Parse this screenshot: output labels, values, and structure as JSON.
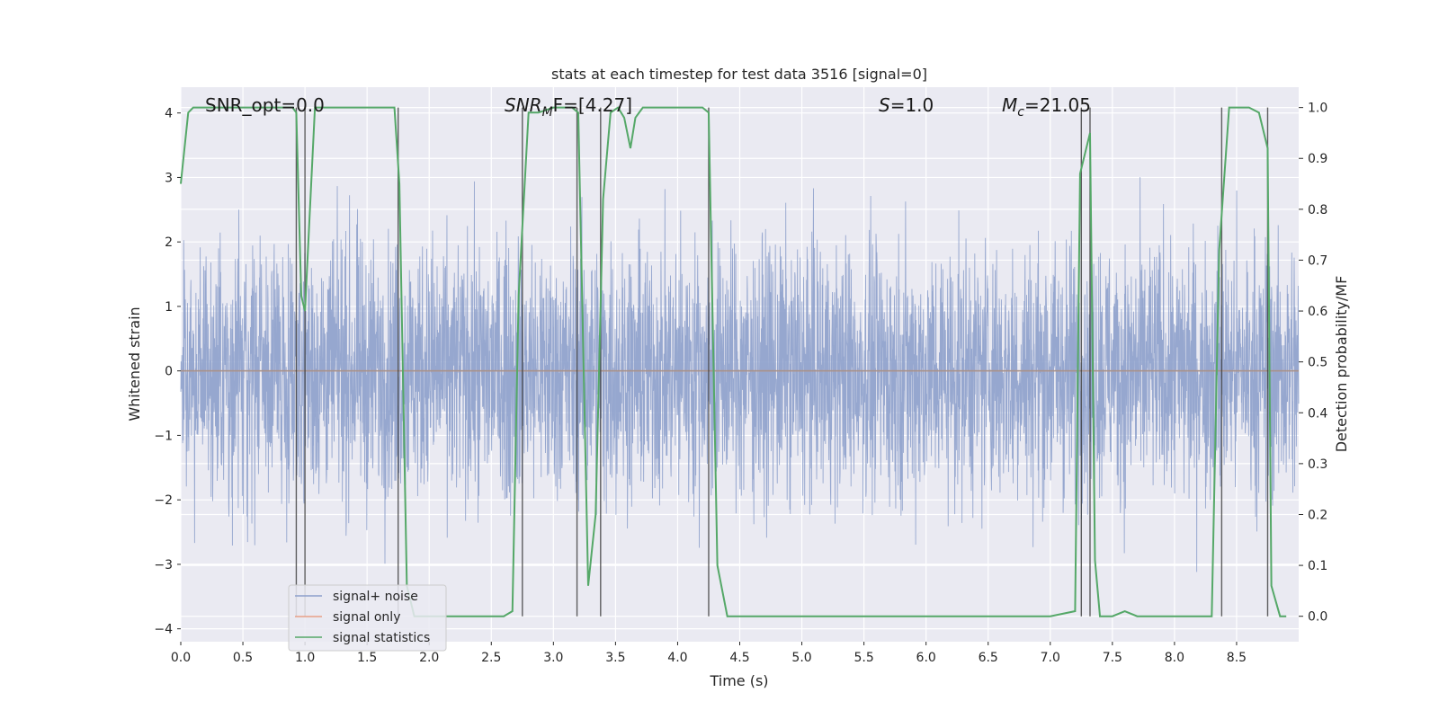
{
  "chart_data": {
    "type": "line",
    "title": "stats at each timestep for test data 3516 [signal=0]",
    "xlabel": "Time (s)",
    "ylabel": "Whitened strain",
    "y2label": "Detection probability/MF",
    "xlim": [
      0.0,
      9.0
    ],
    "ylim": [
      -4.2,
      4.4
    ],
    "y2lim": [
      -0.05,
      1.04
    ],
    "xticks": [
      0.0,
      0.5,
      1.0,
      1.5,
      2.0,
      2.5,
      3.0,
      3.5,
      4.0,
      4.5,
      5.0,
      5.5,
      6.0,
      6.5,
      7.0,
      7.5,
      8.0,
      8.5
    ],
    "xtick_labels": [
      "0.0",
      "0.5",
      "1.0",
      "1.5",
      "2.0",
      "2.5",
      "3.0",
      "3.5",
      "4.0",
      "4.5",
      "5.0",
      "5.5",
      "6.0",
      "6.5",
      "7.0",
      "7.5",
      "8.0",
      "8.5"
    ],
    "yticks": [
      -4,
      -3,
      -2,
      -1,
      0,
      1,
      2,
      3,
      4
    ],
    "ytick_labels": [
      "−4",
      "−3",
      "−2",
      "−1",
      "0",
      "1",
      "2",
      "3",
      "4"
    ],
    "y2ticks": [
      0.0,
      0.1,
      0.2,
      0.3,
      0.4,
      0.5,
      0.6,
      0.7,
      0.8,
      0.9,
      1.0
    ],
    "y2tick_labels": [
      "0.0",
      "0.1",
      "0.2",
      "0.3",
      "0.4",
      "0.5",
      "0.6",
      "0.7",
      "0.8",
      "0.9",
      "1.0"
    ],
    "grid": true,
    "legend_position": "lower-left",
    "series": [
      {
        "name": "signal+ noise",
        "axis": "left",
        "color": "#8da0cb",
        "description_values": "dense whitened strain noise, approximately |y| up to ~3.8"
      },
      {
        "name": "signal only",
        "axis": "left",
        "color": "#e8a087",
        "x": [
          0.0,
          9.0
        ],
        "y": [
          0.0,
          0.0
        ]
      },
      {
        "name": "signal statistics",
        "axis": "right",
        "color": "#55a868",
        "x": [
          0.0,
          0.06,
          0.1,
          0.3,
          0.6,
          0.9,
          0.93,
          0.97,
          1.0,
          1.08,
          1.3,
          1.6,
          1.72,
          1.76,
          1.82,
          1.88,
          2.0,
          2.3,
          2.6,
          2.67,
          2.72,
          2.8,
          2.88,
          3.0,
          3.15,
          3.2,
          3.28,
          3.34,
          3.4,
          3.46,
          3.52,
          3.57,
          3.62,
          3.66,
          3.72,
          3.9,
          4.1,
          4.2,
          4.25,
          4.32,
          4.4,
          4.6,
          5.0,
          5.2,
          5.3,
          5.5,
          6.0,
          6.5,
          7.0,
          7.2,
          7.24,
          7.32,
          7.36,
          7.4,
          7.5,
          7.6,
          7.7,
          7.8,
          8.0,
          8.3,
          8.36,
          8.44,
          8.6,
          8.68,
          8.75,
          8.78,
          8.85,
          8.9
        ],
        "y": [
          0.85,
          0.99,
          1.0,
          1.0,
          1.0,
          1.0,
          0.99,
          0.63,
          0.6,
          1.0,
          1.0,
          1.0,
          1.0,
          0.85,
          0.06,
          0.0,
          0.0,
          0.0,
          0.0,
          0.01,
          0.63,
          0.99,
          0.99,
          1.0,
          1.0,
          0.99,
          0.06,
          0.2,
          0.82,
          0.99,
          1.0,
          0.98,
          0.92,
          0.98,
          1.0,
          1.0,
          1.0,
          1.0,
          0.99,
          0.1,
          0.0,
          0.0,
          0.0,
          0.0,
          0.0,
          0.0,
          0.0,
          0.0,
          0.0,
          0.01,
          0.87,
          0.95,
          0.11,
          0.0,
          0.0,
          0.01,
          0.0,
          0.0,
          0.0,
          0.0,
          0.72,
          1.0,
          1.0,
          0.99,
          0.92,
          0.06,
          0.0,
          0.0
        ]
      }
    ],
    "vertical_lines_x": [
      0.93,
      1.0,
      1.75,
      2.75,
      3.19,
      3.38,
      4.25,
      7.25,
      7.32,
      8.38,
      8.75
    ],
    "annotations": {
      "snr_opt": "SNR_opt=0.0",
      "snr_mf_main": "SNR",
      "snr_mf_sub": "M",
      "snr_mf_rest": "F=[4.27]",
      "s_main": "S",
      "s_rest": "=1.0",
      "mc_main": "M",
      "mc_sub": "c",
      "mc_rest": "=21.05"
    }
  }
}
